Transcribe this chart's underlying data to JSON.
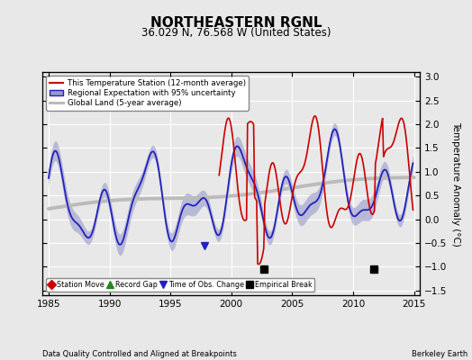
{
  "title": "NORTHEASTERN RGNL",
  "subtitle": "36.029 N, 76.568 W (United States)",
  "ylabel": "Temperature Anomaly (°C)",
  "xlabel_left": "Data Quality Controlled and Aligned at Breakpoints",
  "xlabel_right": "Berkeley Earth",
  "xlim": [
    1984.5,
    2015.5
  ],
  "ylim": [
    -1.6,
    3.1
  ],
  "yticks": [
    -1.5,
    -1.0,
    -0.5,
    0.0,
    0.5,
    1.0,
    1.5,
    2.0,
    2.5,
    3.0
  ],
  "xticks": [
    1985,
    1990,
    1995,
    2000,
    2005,
    2010,
    2015
  ],
  "bg_color": "#e8e8e8",
  "plot_bg_color": "#e8e8e8",
  "legend_entries": [
    "This Temperature Station (12-month average)",
    "Regional Expectation with 95% uncertainty",
    "Global Land (5-year average)"
  ],
  "station_color": "#cc0000",
  "regional_color": "#2222bb",
  "regional_fill_color": "#9999cc",
  "global_color": "#bbbbbb",
  "empirical_break_years": [
    2002.7,
    2011.7
  ],
  "tobs_change_years": [
    1997.8
  ],
  "title_fontsize": 11,
  "subtitle_fontsize": 8.5,
  "tick_fontsize": 7.5,
  "label_fontsize": 7.5
}
